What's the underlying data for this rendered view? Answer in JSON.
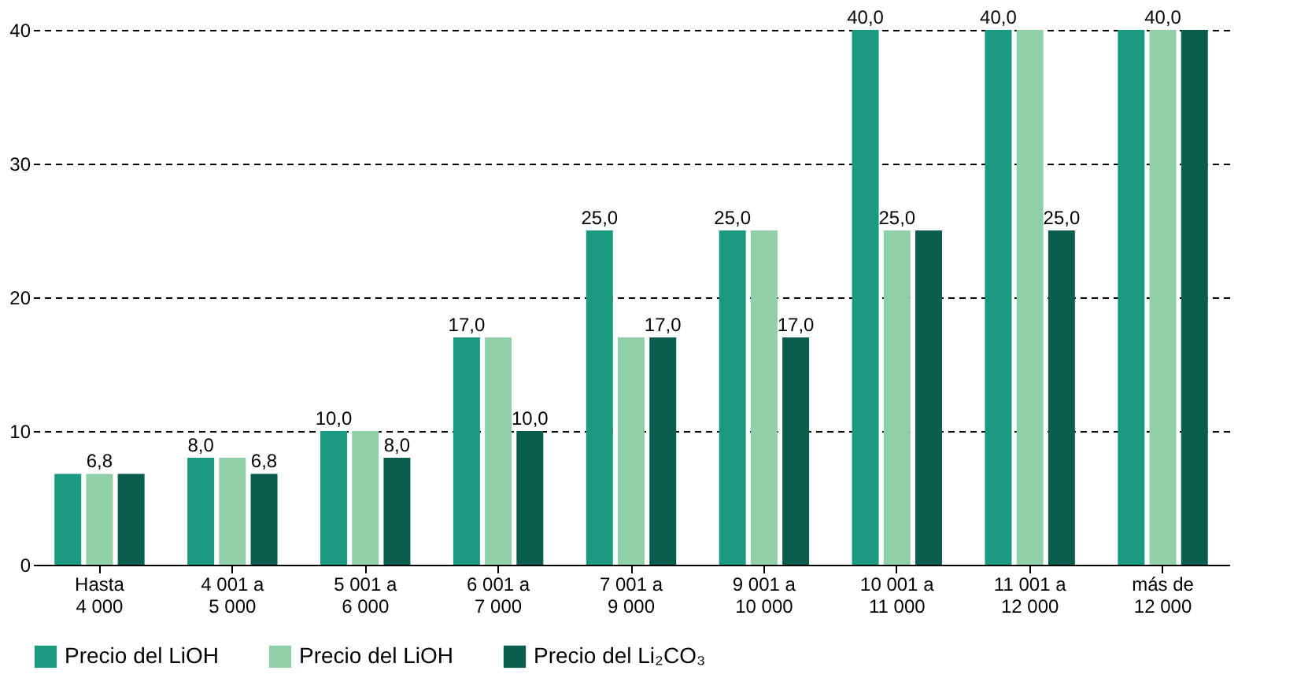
{
  "chart_data": {
    "type": "bar",
    "categories": [
      "Hasta\n4 000",
      "4 001 a\n5 000",
      "5 001 a\n6 000",
      "6 001 a\n7 000",
      "7 001 a\n9 000",
      "9 001 a\n10 000",
      "10 001 a\n11 000",
      "11 001 a\n12 000",
      "más de\n12 000"
    ],
    "series": [
      {
        "name": "Precio del LiOH",
        "color": "#1a9a80",
        "values": [
          6.8,
          8.0,
          10.0,
          17.0,
          25.0,
          25.0,
          40.0,
          40.0,
          40.0
        ],
        "value_labels": [
          null,
          "8,0",
          "10,0",
          "17,0",
          "25,0",
          "25,0",
          "40,0",
          "40,0",
          null
        ]
      },
      {
        "name": "Precio del LiOH",
        "color": "#8fd0a8",
        "values": [
          6.8,
          8.0,
          10.0,
          17.0,
          17.0,
          25.0,
          25.0,
          40.0,
          40.0
        ],
        "value_labels": [
          "6,8",
          null,
          null,
          null,
          null,
          null,
          "25,0",
          null,
          "40,0"
        ]
      },
      {
        "name": "Precio del Li₂CO₃",
        "color": "#0b5e4e",
        "values": [
          6.8,
          6.8,
          8.0,
          10.0,
          17.0,
          17.0,
          25.0,
          25.0,
          40.0
        ],
        "value_labels": [
          null,
          "6,8",
          "8,0",
          "10,0",
          "17,0",
          "17,0",
          null,
          "25,0",
          null
        ]
      }
    ],
    "ylim": [
      0,
      40
    ],
    "yticks": [
      0,
      10,
      20,
      30,
      40
    ],
    "grid": "y",
    "legend": "bottom"
  }
}
